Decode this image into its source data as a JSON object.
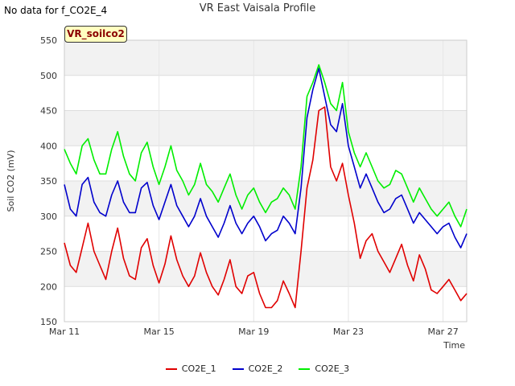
{
  "note": "No data for f_CO2E_4",
  "chart_data": {
    "type": "line",
    "title": "VR East Vaisala Profile",
    "badge": "VR_soilco2",
    "xlabel": "Time",
    "ylabel": "Soil CO2 (mV)",
    "xlim": [
      0,
      17
    ],
    "ylim": [
      150,
      550
    ],
    "yticks": [
      150,
      200,
      250,
      300,
      350,
      400,
      450,
      500,
      550
    ],
    "xticks": [
      {
        "value": 0,
        "label": "Mar 11"
      },
      {
        "value": 4,
        "label": "Mar 15"
      },
      {
        "value": 8,
        "label": "Mar 19"
      },
      {
        "value": 12,
        "label": "Mar 23"
      },
      {
        "value": 16,
        "label": "Mar 27"
      }
    ],
    "grid": true,
    "legend_position": "bottom",
    "x": [
      0,
      0.25,
      0.5,
      0.75,
      1,
      1.25,
      1.5,
      1.75,
      2,
      2.25,
      2.5,
      2.75,
      3,
      3.25,
      3.5,
      3.75,
      4,
      4.25,
      4.5,
      4.75,
      5,
      5.25,
      5.5,
      5.75,
      6,
      6.25,
      6.5,
      6.75,
      7,
      7.25,
      7.5,
      7.75,
      8,
      8.25,
      8.5,
      8.75,
      9,
      9.25,
      9.5,
      9.75,
      10,
      10.25,
      10.5,
      10.75,
      11,
      11.25,
      11.5,
      11.75,
      12,
      12.25,
      12.5,
      12.75,
      13,
      13.25,
      13.5,
      13.75,
      14,
      14.25,
      14.5,
      14.75,
      15,
      15.25,
      15.5,
      15.75,
      16,
      16.25,
      16.5,
      16.75,
      17
    ],
    "series": [
      {
        "name": "CO2E_1",
        "color": "#e00000",
        "values": [
          262,
          230,
          220,
          255,
          290,
          250,
          230,
          210,
          250,
          283,
          240,
          215,
          210,
          255,
          268,
          230,
          205,
          232,
          272,
          238,
          215,
          200,
          215,
          248,
          220,
          200,
          188,
          210,
          238,
          200,
          190,
          215,
          220,
          190,
          170,
          170,
          180,
          208,
          190,
          170,
          250,
          340,
          380,
          450,
          455,
          370,
          350,
          375,
          330,
          290,
          240,
          265,
          275,
          250,
          235,
          220,
          240,
          260,
          230,
          208,
          245,
          225,
          195,
          190,
          200,
          210,
          195,
          180,
          190
        ]
      },
      {
        "name": "CO2E_2",
        "color": "#0000cc",
        "values": [
          345,
          310,
          300,
          345,
          355,
          320,
          305,
          300,
          330,
          350,
          320,
          305,
          305,
          340,
          348,
          315,
          295,
          320,
          345,
          315,
          300,
          285,
          300,
          325,
          300,
          285,
          270,
          290,
          315,
          290,
          275,
          290,
          300,
          285,
          265,
          275,
          280,
          300,
          290,
          275,
          340,
          440,
          480,
          510,
          470,
          430,
          420,
          460,
          400,
          370,
          340,
          360,
          340,
          320,
          305,
          310,
          325,
          330,
          310,
          290,
          305,
          295,
          285,
          275,
          285,
          290,
          270,
          255,
          275
        ]
      },
      {
        "name": "CO2E_3",
        "color": "#00ee00",
        "values": [
          395,
          375,
          360,
          400,
          410,
          380,
          360,
          360,
          395,
          420,
          385,
          360,
          350,
          390,
          405,
          370,
          345,
          370,
          400,
          365,
          350,
          330,
          345,
          375,
          345,
          335,
          320,
          340,
          360,
          330,
          310,
          330,
          340,
          320,
          305,
          320,
          325,
          340,
          330,
          310,
          370,
          470,
          490,
          515,
          490,
          460,
          450,
          490,
          420,
          390,
          370,
          390,
          370,
          350,
          340,
          345,
          365,
          360,
          340,
          320,
          340,
          325,
          310,
          300,
          310,
          320,
          300,
          285,
          310
        ]
      }
    ]
  }
}
